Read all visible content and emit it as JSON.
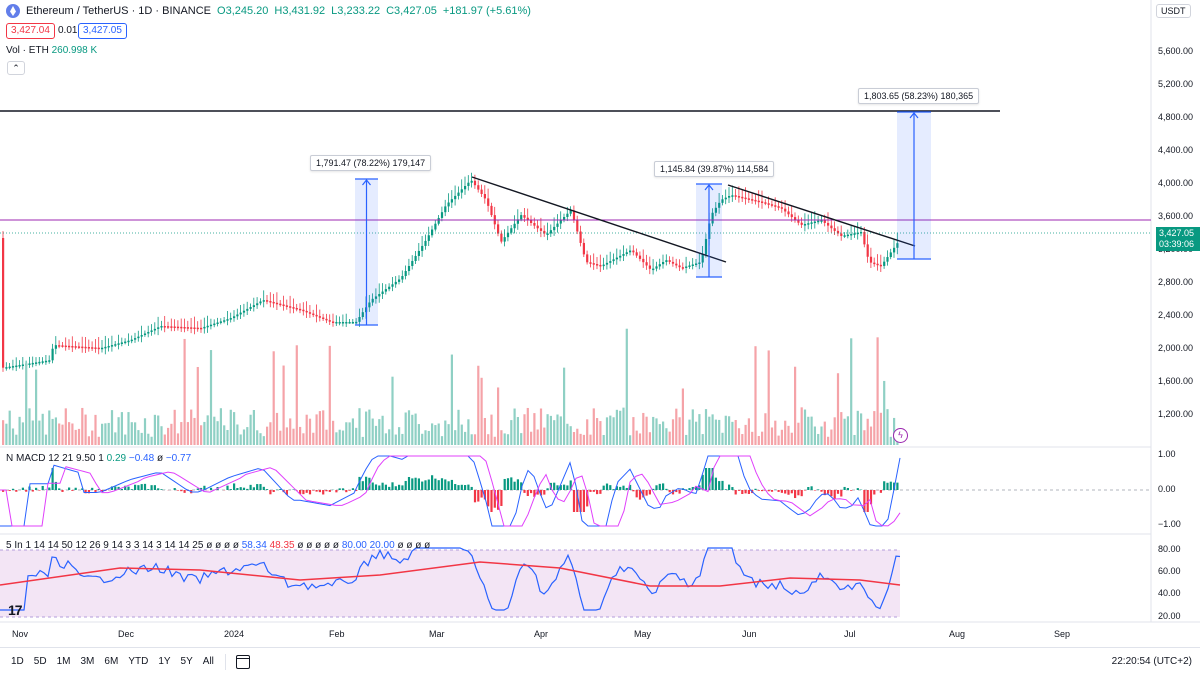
{
  "header": {
    "symbol": "Ethereum / TetherUS · 1D · BINANCE",
    "open": "O3,245.20",
    "high": "H3,431.92",
    "low": "L3,233.22",
    "close": "C3,427.05",
    "change": "+181.97 (+5.61%)",
    "sell_price": "3,427.04",
    "spread": "0.01",
    "buy_price": "3,427.05",
    "volume_label": "Vol · ETH",
    "volume_value": "260.998 K",
    "collapse_icon": "chevron-up-icon"
  },
  "macd_legend": {
    "name": "N MACD 12 21 9.50 1",
    "v1": "0.29",
    "v2": "−0.48",
    "v3": "ø",
    "v4": "−0.77"
  },
  "rsi_legend": {
    "name": "5 In 1 14 14 50 12 26 9 14 3 3 14 3 14 14 25",
    "pre": "ø ø ø ø",
    "v1": "58.34",
    "v2": "48.35",
    "mid": "ø ø ø ø ø",
    "v3": "80.00",
    "v4": "20.00",
    "post": "ø ø ø ø"
  },
  "currency_button": "USDT",
  "price_axis": [
    "5,600.00",
    "5,200.00",
    "4,800.00",
    "4,400.00",
    "4,000.00",
    "3,600.00",
    "3,200.00",
    "2,800.00",
    "2,400.00",
    "2,000.00",
    "1,600.00",
    "1,200.00"
  ],
  "macd_axis": [
    "1.00",
    "0.00",
    "−1.00"
  ],
  "rsi_axis": [
    "80.00",
    "60.00",
    "40.00",
    "20.00"
  ],
  "current_price": "3,427.05",
  "countdown": "03:39:06",
  "time_axis": [
    "Nov",
    "Dec",
    "2024",
    "Feb",
    "Mar",
    "Apr",
    "May",
    "Jun",
    "Jul",
    "Aug",
    "Sep"
  ],
  "measurements": [
    {
      "label": "1,791.47 (78.22%) 179,147"
    },
    {
      "label": "1,145.84 (39.87%) 114,584"
    },
    {
      "label": "1,803.65 (58.23%) 180,365"
    }
  ],
  "timeframes": [
    "1D",
    "5D",
    "1M",
    "3M",
    "6M",
    "YTD",
    "1Y",
    "5Y",
    "All"
  ],
  "clock": "22:20:54 (UTC+2)",
  "logo_text": "17",
  "colors": {
    "up": "#089981",
    "down": "#f23645",
    "vol_up": "#8fd0c4",
    "vol_down": "#f5a3a8",
    "measure": "#2962ff",
    "resistance": "#9c27b0",
    "rsi_bg": "#f3e5f5"
  }
}
